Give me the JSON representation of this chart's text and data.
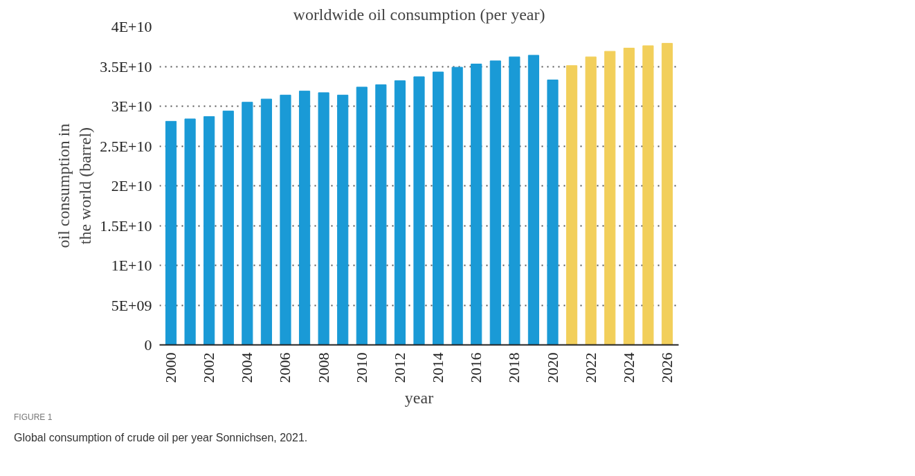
{
  "chart_data": {
    "type": "bar",
    "title": "worldwide oil consumption (per year)",
    "xlabel": "year",
    "ylabel": "oil consumption in the world (barrel)",
    "categories": [
      "2000",
      null,
      "2002",
      null,
      "2004",
      null,
      "2006",
      null,
      "2008",
      null,
      "2010",
      null,
      "2012",
      null,
      "2014",
      null,
      "2016",
      null,
      "2018",
      null,
      "2020",
      null,
      "2022",
      null,
      "2024",
      null,
      "2026"
    ],
    "values": [
      28100000000.0,
      28400000000.0,
      28700000000.0,
      29400000000.0,
      30500000000.0,
      30900000000.0,
      31400000000.0,
      31900000000.0,
      31700000000.0,
      31400000000.0,
      32400000000.0,
      32700000000.0,
      33200000000.0,
      33700000000.0,
      34300000000.0,
      34900000000.0,
      35300000000.0,
      35700000000.0,
      36200000000.0,
      36400000000.0,
      33300000000.0,
      35100000000.0,
      36200000000.0,
      36900000000.0,
      37300000000.0,
      37600000000.0,
      37900000000.0
    ],
    "colors": [
      "#1a9ad6",
      "#1a9ad6",
      "#1a9ad6",
      "#1a9ad6",
      "#1a9ad6",
      "#1a9ad6",
      "#1a9ad6",
      "#1a9ad6",
      "#1a9ad6",
      "#1a9ad6",
      "#1a9ad6",
      "#1a9ad6",
      "#1a9ad6",
      "#1a9ad6",
      "#1a9ad6",
      "#1a9ad6",
      "#1a9ad6",
      "#1a9ad6",
      "#1a9ad6",
      "#1a9ad6",
      "#1a9ad6",
      "#f2cf5b",
      "#f2cf5b",
      "#f2cf5b",
      "#f2cf5b",
      "#f2cf5b",
      "#f2cf5b"
    ],
    "ylim": [
      0,
      40000000000.0
    ],
    "yticks": [
      0,
      {
        "value": 5000000000.0,
        "label": "5E+09"
      },
      {
        "value": 10000000000.0,
        "label": "1E+10"
      },
      {
        "value": 15000000000.0,
        "label": "1.5E+10"
      },
      {
        "value": 20000000000.0,
        "label": "2E+10"
      },
      {
        "value": 25000000000.0,
        "label": "2.5E+10"
      },
      {
        "value": 30000000000.0,
        "label": "3E+10"
      },
      {
        "value": 35000000000.0,
        "label": "3.5E+10"
      },
      {
        "value": 40000000000.0,
        "label": "4E+10"
      }
    ],
    "grid": "y",
    "annotations": [
      "FIGURE 1",
      "Global consumption of crude oil per year Sonnichsen, 2021."
    ]
  }
}
